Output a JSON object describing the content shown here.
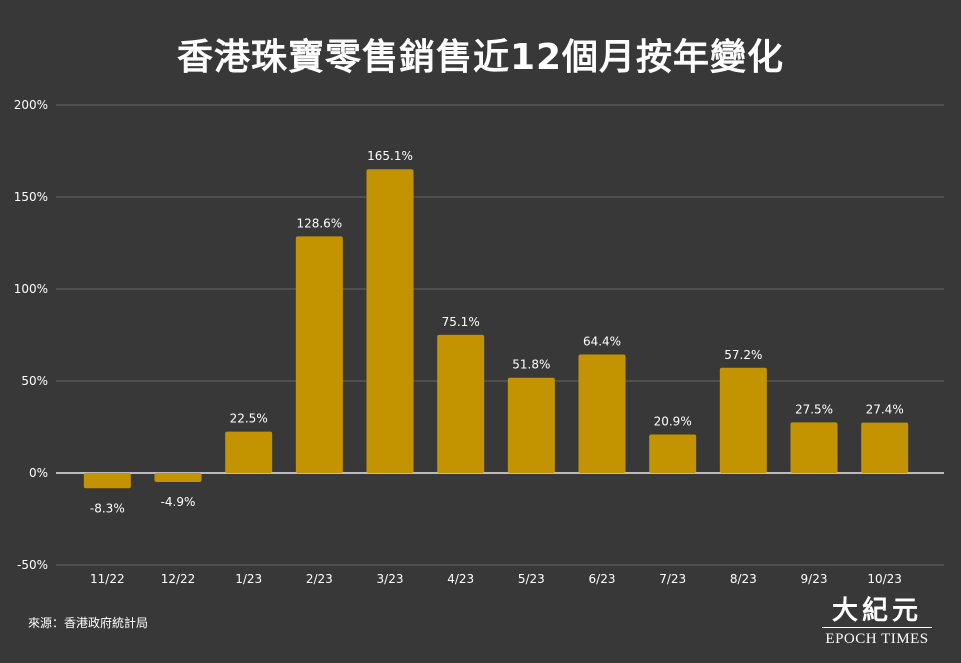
{
  "chart_data": {
    "type": "bar",
    "title": "香港珠寶零售銷售近12個月按年變化",
    "categories": [
      "11/22",
      "12/22",
      "1/23",
      "2/23",
      "3/23",
      "4/23",
      "5/23",
      "6/23",
      "7/23",
      "8/23",
      "9/23",
      "10/23"
    ],
    "values": [
      -8.3,
      -4.9,
      22.5,
      128.6,
      165.1,
      75.1,
      51.8,
      64.4,
      20.9,
      57.2,
      27.5,
      27.4
    ],
    "data_labels": [
      "-8.3%",
      "-4.9%",
      "22.5%",
      "128.6%",
      "165.1%",
      "75.1%",
      "51.8%",
      "64.4%",
      "20.9%",
      "57.2%",
      "27.5%",
      "27.4%"
    ],
    "ylim": [
      -50,
      200
    ],
    "yticks": [
      -50,
      0,
      50,
      100,
      150,
      200
    ],
    "ytick_labels": [
      "-50%",
      "0%",
      "50%",
      "100%",
      "150%",
      "200%"
    ],
    "xlabel": "",
    "ylabel": "",
    "grid": true,
    "bar_color": "#c39400"
  },
  "source": "來源：香港政府統計局",
  "logo": {
    "cn": "大紀元",
    "en": "EPOCH TIMES"
  }
}
